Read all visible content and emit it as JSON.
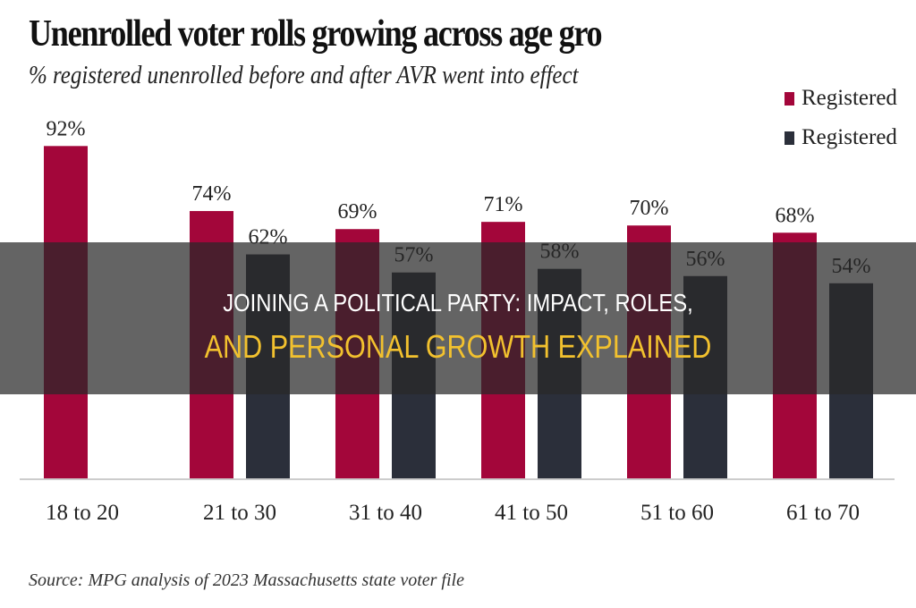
{
  "chart_data": {
    "type": "bar",
    "title": "Unenrolled voter rolls growing across age gro",
    "subtitle": "% registered unenrolled before and after AVR went into effect",
    "categories": [
      "18 to 20",
      "21 to 30",
      "31 to 40",
      "41 to 50",
      "51 to 60",
      "61 to 70"
    ],
    "series": [
      {
        "name": "Registered",
        "color": "#a3063a",
        "values": [
          92,
          74,
          69,
          71,
          70,
          68
        ],
        "labels": [
          "92%",
          "74%",
          "69%",
          "71%",
          "70%",
          "68%"
        ]
      },
      {
        "name": "Registered",
        "color": "#2b2f3a",
        "values": [
          null,
          62,
          57,
          58,
          56,
          54
        ],
        "labels": [
          "",
          "62%",
          "57%",
          "58%",
          "56%",
          "54%"
        ]
      }
    ],
    "ylim": [
      0,
      100
    ],
    "grid": false,
    "legend_position": "top-right",
    "source": "Source: MPG analysis of 2023 Massachusetts state voter file"
  },
  "banner": {
    "line1": "JOINING A POLITICAL PARTY: IMPACT, ROLES,",
    "line2": "AND PERSONAL GROWTH EXPLAINED",
    "line1_color": "#ffffff",
    "line2_color": "#f2c12e"
  }
}
